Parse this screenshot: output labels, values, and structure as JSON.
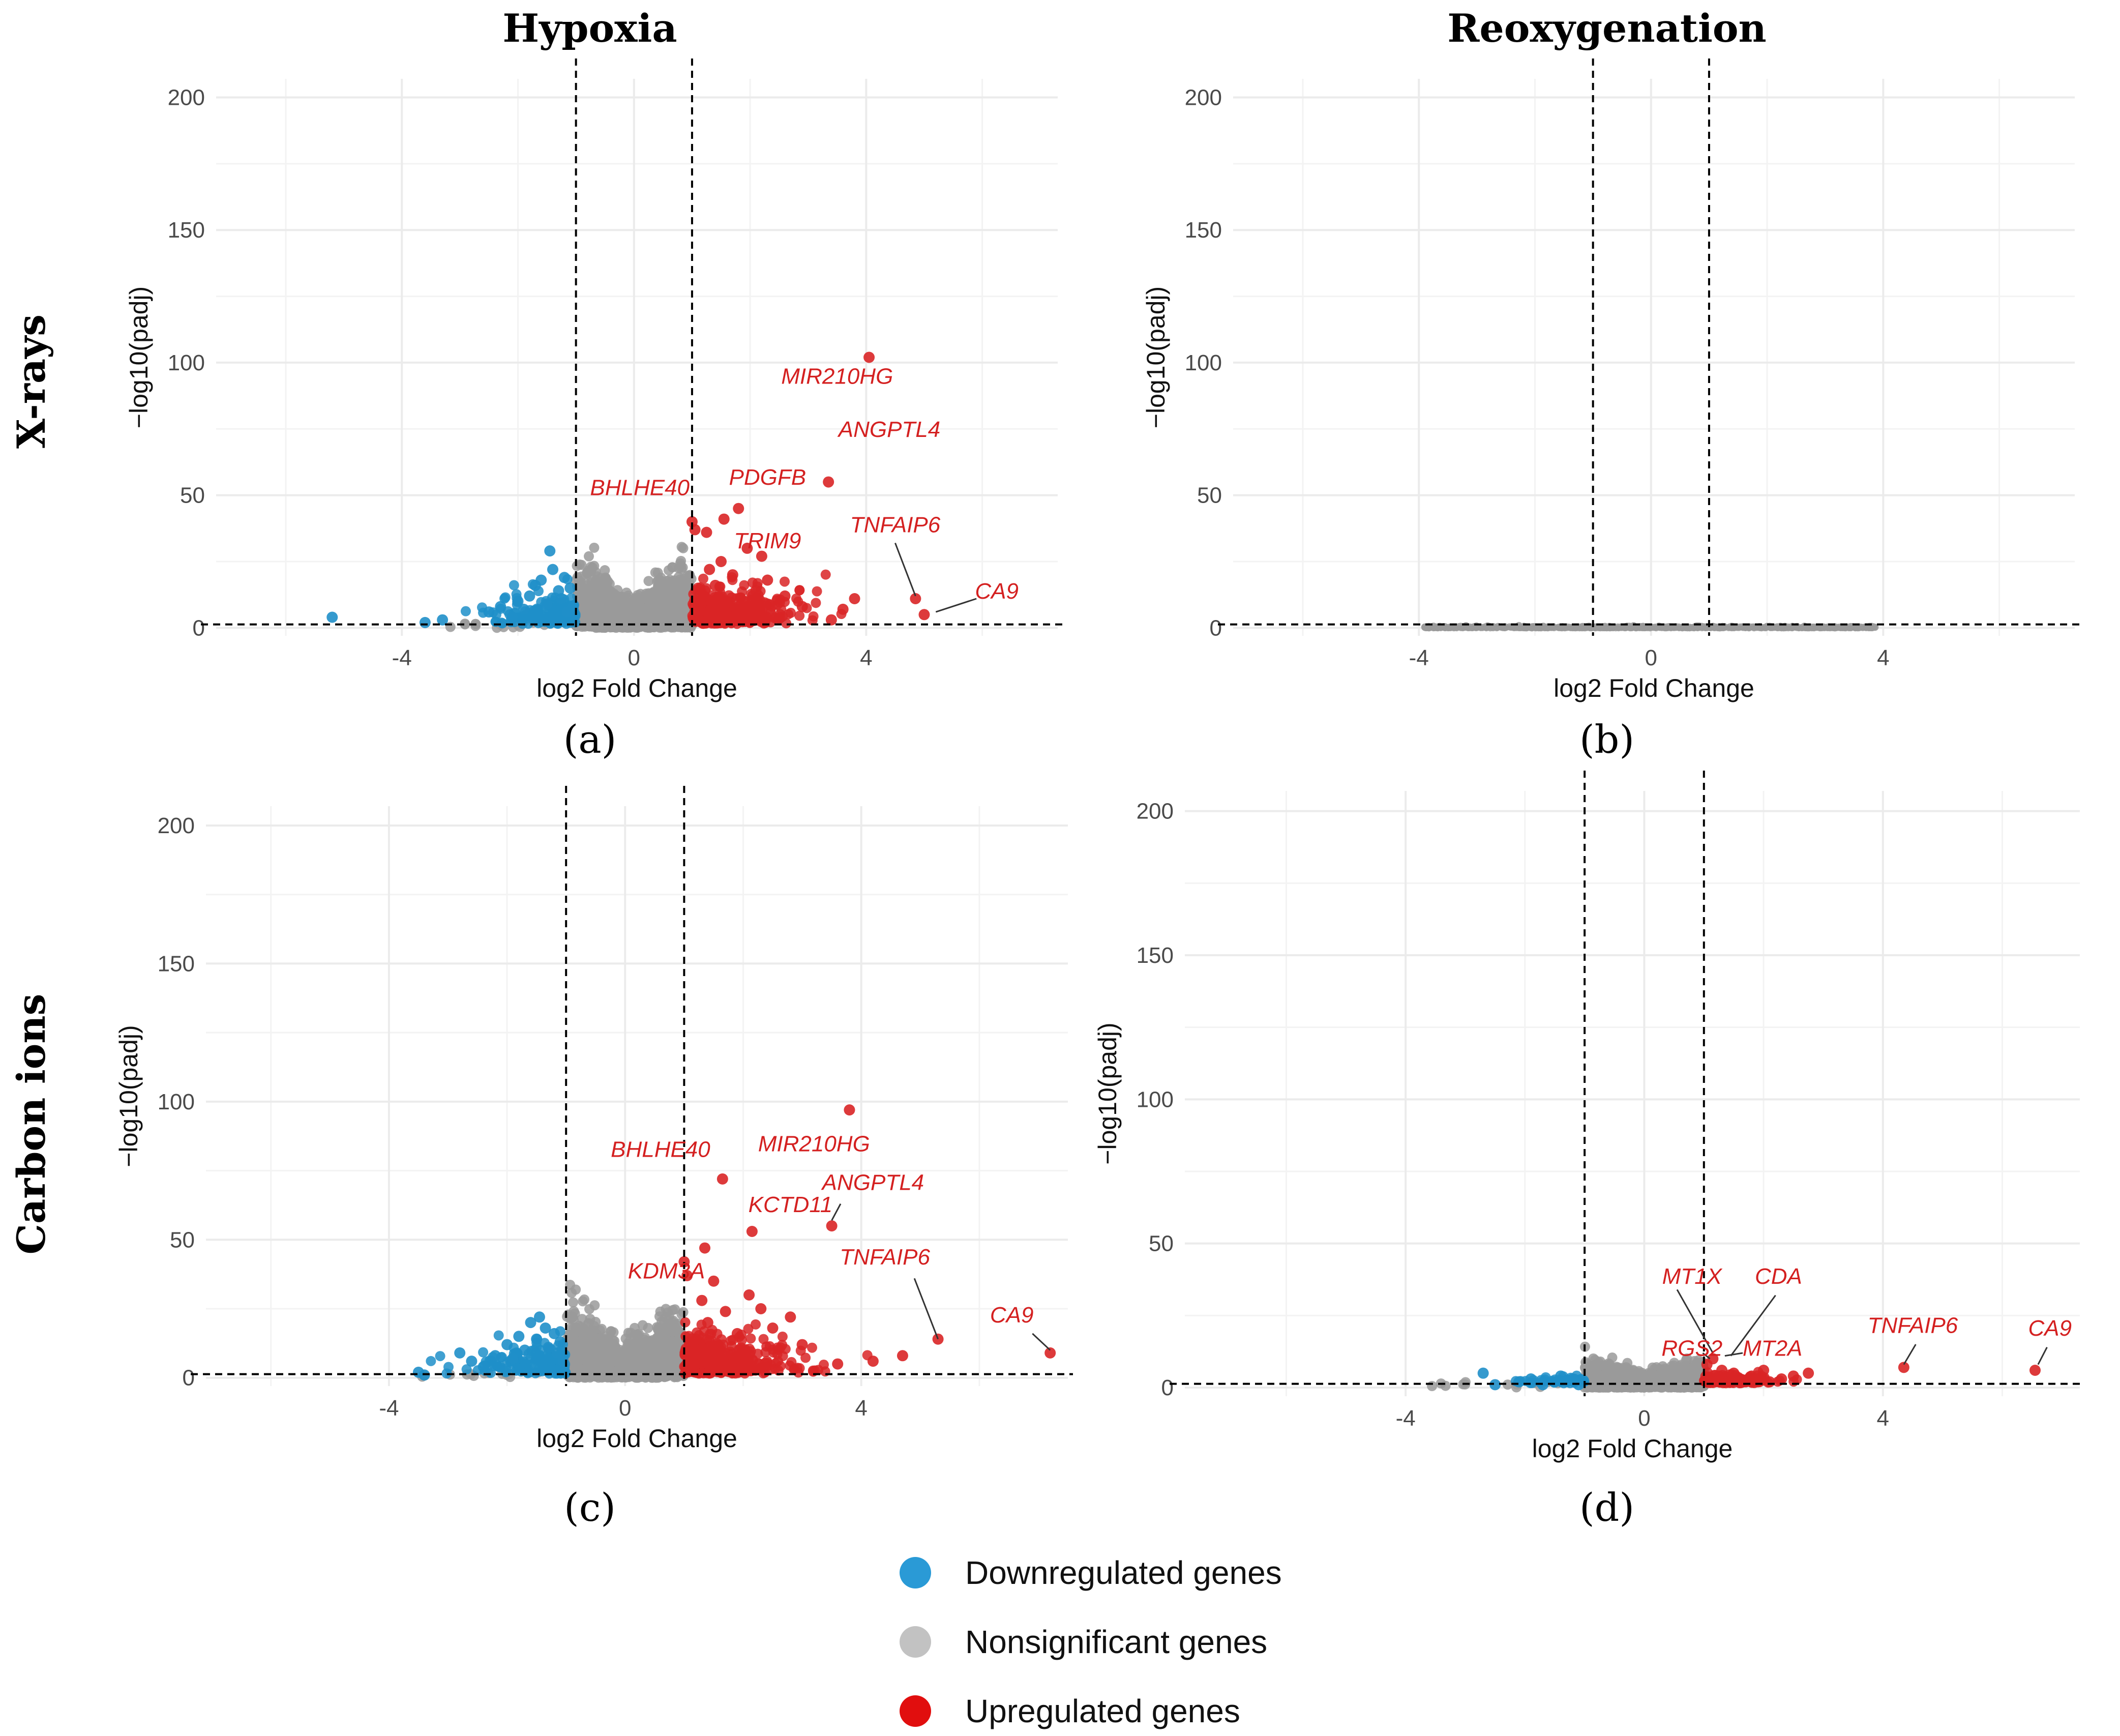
{
  "figure": {
    "column_titles": [
      "Hypoxia",
      "Reoxygenation"
    ],
    "row_titles": [
      "X-rays",
      "Carbon ions"
    ],
    "panel_labels": [
      "(a)",
      "(b)",
      "(c)",
      "(d)"
    ]
  },
  "colors": {
    "down": "#1f8fc9",
    "nonsig": "#9a9a9a",
    "up": "#d92526",
    "legend_down": "#2a9ad6",
    "legend_nonsig": "#c2c2c2",
    "legend_up": "#e10e0e",
    "label": "#d42020",
    "grid": "#ebebeb",
    "text": "#3f3f3f"
  },
  "legend": {
    "items": [
      {
        "label": "Downregulated genes",
        "color_key": "legend_down"
      },
      {
        "label": "Nonsignificant genes",
        "color_key": "legend_nonsig"
      },
      {
        "label": "Upregulated genes",
        "color_key": "legend_up"
      }
    ]
  },
  "chart_data": [
    {
      "panel": "a",
      "type": "scatter",
      "title": "Hypoxia / X-rays",
      "xlabel": "log2 Fold Change",
      "ylabel": "−log10(padj)",
      "xlim": [
        -7.2,
        7.3
      ],
      "ylim": [
        -3,
        207
      ],
      "xticks": [
        -4,
        0,
        4
      ],
      "yticks": [
        0,
        50,
        100,
        150,
        200
      ],
      "fc_threshold": [
        -1,
        1
      ],
      "padj_threshold_line": 1.3,
      "points": {
        "down": [
          [
            -5.2,
            4
          ],
          [
            -3.6,
            2
          ],
          [
            -3.3,
            3
          ],
          [
            -2.5,
            6
          ],
          [
            -2.3,
            8
          ],
          [
            -2.1,
            4
          ],
          [
            -2.0,
            10
          ],
          [
            -1.9,
            7
          ],
          [
            -1.8,
            12
          ],
          [
            -1.7,
            16
          ],
          [
            -1.6,
            18
          ],
          [
            -1.5,
            9
          ],
          [
            -1.45,
            29
          ],
          [
            -1.4,
            22
          ],
          [
            -1.3,
            14
          ],
          [
            -1.25,
            11
          ],
          [
            -1.2,
            19
          ],
          [
            -1.15,
            6
          ],
          [
            -1.1,
            15
          ],
          [
            -1.05,
            8
          ]
        ],
        "up": [
          [
            4.05,
            102
          ],
          [
            3.35,
            55
          ],
          [
            1.8,
            45
          ],
          [
            1.0,
            40
          ],
          [
            1.05,
            37
          ],
          [
            1.25,
            36
          ],
          [
            1.55,
            41
          ],
          [
            2.2,
            27
          ],
          [
            1.95,
            30
          ],
          [
            4.85,
            11
          ],
          [
            5.0,
            5
          ],
          [
            3.8,
            11
          ],
          [
            3.6,
            7
          ],
          [
            3.4,
            3
          ],
          [
            2.9,
            8
          ],
          [
            2.6,
            12
          ],
          [
            2.3,
            18
          ],
          [
            2.1,
            14
          ],
          [
            1.9,
            10
          ],
          [
            1.7,
            20
          ],
          [
            1.5,
            25
          ],
          [
            1.4,
            16
          ],
          [
            1.3,
            22
          ],
          [
            1.2,
            12
          ],
          [
            1.1,
            8
          ]
        ]
      },
      "gene_labels": [
        {
          "gene": "MIR210HG",
          "x": 3.5,
          "y": 92
        },
        {
          "gene": "ANGPTL4",
          "x": 4.4,
          "y": 72
        },
        {
          "gene": "BHLHE40",
          "x": 0.1,
          "y": 50
        },
        {
          "gene": "PDGFB",
          "x": 2.3,
          "y": 54
        },
        {
          "gene": "TNFAIP6",
          "x": 4.5,
          "y": 36
        },
        {
          "gene": "TRIM9",
          "x": 2.3,
          "y": 30
        },
        {
          "gene": "CA9",
          "x": 6.25,
          "y": 11
        }
      ],
      "connectors": [
        {
          "from": [
            4.5,
            32
          ],
          "to": [
            4.85,
            12
          ]
        },
        {
          "from": [
            5.9,
            11
          ],
          "to": [
            5.2,
            6
          ]
        }
      ]
    },
    {
      "panel": "b",
      "type": "scatter",
      "title": "Reoxygenation / X-rays",
      "xlabel": "log2 Fold Change",
      "ylabel": "−log10(padj)",
      "xlim": [
        -7.2,
        7.3
      ],
      "ylim": [
        -3,
        207
      ],
      "xticks": [
        -4,
        0,
        4
      ],
      "yticks": [
        0,
        50,
        100,
        150,
        200
      ],
      "fc_threshold": [
        -1,
        1
      ],
      "padj_threshold_line": 1.3,
      "points": {
        "down": [],
        "up": []
      },
      "gene_labels": [],
      "connectors": []
    },
    {
      "panel": "c",
      "type": "scatter",
      "title": "Hypoxia / Carbon ions",
      "xlabel": "log2 Fold Change",
      "ylabel": "−log10(padj)",
      "xlim": [
        -7.1,
        7.5
      ],
      "ylim": [
        -3,
        207
      ],
      "xticks": [
        -4,
        0,
        4
      ],
      "yticks": [
        0,
        50,
        100,
        150,
        200
      ],
      "fc_threshold": [
        -1,
        1
      ],
      "padj_threshold_line": 1.3,
      "points": {
        "down": [
          [
            -3.5,
            2
          ],
          [
            -3.4,
            1
          ],
          [
            -2.8,
            9
          ],
          [
            -2.6,
            6
          ],
          [
            -2.4,
            4
          ],
          [
            -2.2,
            8
          ],
          [
            -2.0,
            12
          ],
          [
            -1.9,
            7
          ],
          [
            -1.8,
            15
          ],
          [
            -1.7,
            10
          ],
          [
            -1.6,
            20
          ],
          [
            -1.5,
            14
          ],
          [
            -1.45,
            22
          ],
          [
            -1.35,
            18
          ],
          [
            -1.3,
            11
          ],
          [
            -1.2,
            16
          ],
          [
            -1.15,
            9
          ],
          [
            -1.1,
            13
          ],
          [
            -1.05,
            6
          ]
        ],
        "up": [
          [
            3.8,
            97
          ],
          [
            1.65,
            72
          ],
          [
            3.5,
            55
          ],
          [
            2.15,
            53
          ],
          [
            1.35,
            47
          ],
          [
            1.0,
            42
          ],
          [
            1.05,
            37
          ],
          [
            5.3,
            14
          ],
          [
            7.2,
            9
          ],
          [
            4.7,
            8
          ],
          [
            3.0,
            12
          ],
          [
            2.8,
            22
          ],
          [
            2.5,
            18
          ],
          [
            2.3,
            25
          ],
          [
            2.1,
            30
          ],
          [
            1.9,
            16
          ],
          [
            1.7,
            24
          ],
          [
            1.5,
            35
          ],
          [
            1.4,
            20
          ],
          [
            1.3,
            28
          ],
          [
            1.2,
            14
          ],
          [
            1.1,
            10
          ],
          [
            4.2,
            6
          ],
          [
            3.6,
            5
          ]
        ]
      },
      "gene_labels": [
        {
          "gene": "MIR210HG",
          "x": 3.2,
          "y": 82
        },
        {
          "gene": "BHLHE40",
          "x": 0.6,
          "y": 80
        },
        {
          "gene": "ANGPTL4",
          "x": 4.2,
          "y": 68
        },
        {
          "gene": "KCTD11",
          "x": 2.8,
          "y": 60
        },
        {
          "gene": "TNFAIP6",
          "x": 4.4,
          "y": 41
        },
        {
          "gene": "KDM3A",
          "x": 0.7,
          "y": 36
        },
        {
          "gene": "CA9",
          "x": 6.55,
          "y": 20
        }
      ],
      "connectors": [
        {
          "from": [
            4.9,
            36
          ],
          "to": [
            5.3,
            14
          ]
        },
        {
          "from": [
            6.9,
            16
          ],
          "to": [
            7.2,
            10
          ]
        },
        {
          "from": [
            3.65,
            63
          ],
          "to": [
            3.5,
            57
          ]
        }
      ]
    },
    {
      "panel": "d",
      "type": "scatter",
      "title": "Reoxygenation / Carbon ions",
      "xlabel": "log2 Fold Change",
      "ylabel": "−log10(padj)",
      "xlim": [
        -7.7,
        7.3
      ],
      "ylim": [
        -3,
        207
      ],
      "xticks": [
        -4,
        0,
        4
      ],
      "yticks": [
        0,
        50,
        100,
        150,
        200
      ],
      "fc_threshold": [
        -1,
        1
      ],
      "padj_threshold_line": 1.3,
      "points": {
        "down": [
          [
            -2.7,
            5
          ],
          [
            -2.5,
            1
          ],
          [
            -2.1,
            2
          ],
          [
            -1.9,
            3
          ],
          [
            -1.7,
            1
          ],
          [
            -1.5,
            2
          ],
          [
            -1.4,
            4
          ],
          [
            -1.3,
            2
          ],
          [
            -1.2,
            3
          ],
          [
            -1.1,
            1
          ]
        ],
        "up": [
          [
            4.35,
            7
          ],
          [
            6.55,
            6
          ],
          [
            1.15,
            10
          ],
          [
            1.05,
            8
          ],
          [
            1.3,
            6
          ],
          [
            1.5,
            5
          ],
          [
            1.8,
            4
          ],
          [
            2.0,
            6
          ],
          [
            2.3,
            3
          ],
          [
            2.5,
            4
          ],
          [
            2.75,
            5
          ],
          [
            1.2,
            3
          ],
          [
            1.4,
            2
          ],
          [
            1.7,
            2
          ],
          [
            2.1,
            2
          ],
          [
            1.25,
            4
          ],
          [
            1.6,
            3
          ],
          [
            1.9,
            2
          ]
        ]
      },
      "gene_labels": [
        {
          "gene": "MT1X",
          "x": 0.8,
          "y": 36
        },
        {
          "gene": "CDA",
          "x": 2.25,
          "y": 36
        },
        {
          "gene": "RGS2",
          "x": 0.8,
          "y": 11
        },
        {
          "gene": "MT2A",
          "x": 2.15,
          "y": 11
        },
        {
          "gene": "TNFAIP6",
          "x": 4.5,
          "y": 19
        },
        {
          "gene": "CA9",
          "x": 6.8,
          "y": 18
        }
      ],
      "connectors": [
        {
          "from": [
            0.55,
            34
          ],
          "to": [
            1.15,
            12
          ]
        },
        {
          "from": [
            2.2,
            32
          ],
          "to": [
            1.45,
            11
          ]
        },
        {
          "from": [
            0.98,
            12
          ],
          "to": [
            1.1,
            10
          ]
        },
        {
          "from": [
            1.65,
            12
          ],
          "to": [
            1.35,
            11
          ]
        },
        {
          "from": [
            4.55,
            15
          ],
          "to": [
            4.35,
            8
          ]
        },
        {
          "from": [
            6.75,
            14
          ],
          "to": [
            6.6,
            8
          ]
        }
      ]
    }
  ]
}
